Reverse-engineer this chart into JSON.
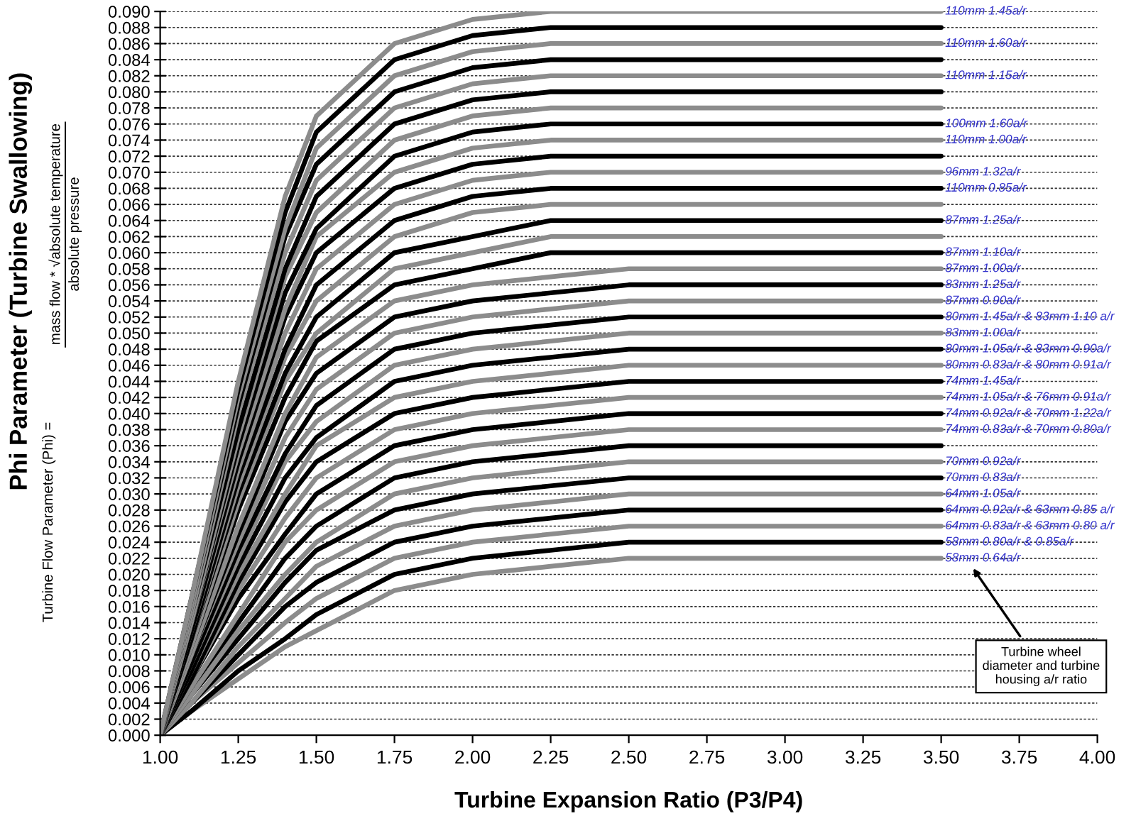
{
  "chart_data": {
    "type": "line",
    "xlabel": "Turbine Expansion Ratio (P3/P4)",
    "ylabel": "Phi Parameter (Turbine Swallowing)",
    "annotations": [
      "Turbine Flow Parameter (Phi) =",
      "mass flow * √absolute temperature",
      "absolute pressure",
      "Turbine wheel\ndiameter and turbine\nhousing a/r ratio"
    ],
    "x": [
      1.0,
      1.1,
      1.25,
      1.4,
      1.5,
      1.75,
      2.0,
      2.25,
      2.5,
      3.0,
      3.5
    ],
    "xlim": [
      1.0,
      4.0
    ],
    "ylim": [
      0.0,
      0.09
    ],
    "grid": "y",
    "xticks": [
      {
        "value": 1.0,
        "label": "1.00"
      },
      {
        "value": 1.25,
        "label": "1.25"
      },
      {
        "value": 1.5,
        "label": "1.50"
      },
      {
        "value": 1.75,
        "label": "1.75"
      },
      {
        "value": 2.0,
        "label": "2.00"
      },
      {
        "value": 2.25,
        "label": "2.25"
      },
      {
        "value": 2.5,
        "label": "2.50"
      },
      {
        "value": 2.75,
        "label": "2.75"
      },
      {
        "value": 3.0,
        "label": "3.00"
      },
      {
        "value": 3.25,
        "label": "3.25"
      },
      {
        "value": 3.5,
        "label": "3.50"
      },
      {
        "value": 3.75,
        "label": "3.75"
      },
      {
        "value": 4.0,
        "label": "4.00"
      }
    ],
    "yticks": [
      {
        "value": 0.0,
        "label": "0.000"
      },
      {
        "value": 0.002,
        "label": "0.002"
      },
      {
        "value": 0.004,
        "label": "0.004"
      },
      {
        "value": 0.006,
        "label": "0.006"
      },
      {
        "value": 0.008,
        "label": "0.008"
      },
      {
        "value": 0.01,
        "label": "0.010"
      },
      {
        "value": 0.012,
        "label": "0.012"
      },
      {
        "value": 0.014,
        "label": "0.014"
      },
      {
        "value": 0.016,
        "label": "0.016"
      },
      {
        "value": 0.018,
        "label": "0.018"
      },
      {
        "value": 0.02,
        "label": "0.020"
      },
      {
        "value": 0.022,
        "label": "0.022"
      },
      {
        "value": 0.024,
        "label": "0.024"
      },
      {
        "value": 0.026,
        "label": "0.026"
      },
      {
        "value": 0.028,
        "label": "0.028"
      },
      {
        "value": 0.03,
        "label": "0.030"
      },
      {
        "value": 0.032,
        "label": "0.032"
      },
      {
        "value": 0.034,
        "label": "0.034"
      },
      {
        "value": 0.036,
        "label": "0.036"
      },
      {
        "value": 0.038,
        "label": "0.038"
      },
      {
        "value": 0.04,
        "label": "0.040"
      },
      {
        "value": 0.042,
        "label": "0.042"
      },
      {
        "value": 0.044,
        "label": "0.044"
      },
      {
        "value": 0.046,
        "label": "0.046"
      },
      {
        "value": 0.048,
        "label": "0.048"
      },
      {
        "value": 0.05,
        "label": "0.050"
      },
      {
        "value": 0.052,
        "label": "0.052"
      },
      {
        "value": 0.054,
        "label": "0.054"
      },
      {
        "value": 0.056,
        "label": "0.056"
      },
      {
        "value": 0.058,
        "label": "0.058"
      },
      {
        "value": 0.06,
        "label": "0.060"
      },
      {
        "value": 0.062,
        "label": "0.062"
      },
      {
        "value": 0.064,
        "label": "0.064"
      },
      {
        "value": 0.066,
        "label": "0.066"
      },
      {
        "value": 0.068,
        "label": "0.068"
      },
      {
        "value": 0.07,
        "label": "0.070"
      },
      {
        "value": 0.072,
        "label": "0.072"
      },
      {
        "value": 0.074,
        "label": "0.074"
      },
      {
        "value": 0.076,
        "label": "0.076"
      },
      {
        "value": 0.078,
        "label": "0.078"
      },
      {
        "value": 0.08,
        "label": "0.080"
      },
      {
        "value": 0.082,
        "label": "0.082"
      },
      {
        "value": 0.084,
        "label": "0.084"
      },
      {
        "value": 0.086,
        "label": "0.086"
      },
      {
        "value": 0.088,
        "label": "0.088"
      },
      {
        "value": 0.09,
        "label": "0.090"
      }
    ],
    "series": [
      {
        "name": "58mm 0.64a/r",
        "color": "#8c8c8c",
        "values": [
          0.0,
          0.003,
          0.007,
          0.011,
          0.013,
          0.018,
          0.02,
          0.021,
          0.022,
          0.022,
          0.022
        ]
      },
      {
        "name": "58mm 0.80a/r & 0.85a/r",
        "color": "#000000",
        "values": [
          0.0,
          0.003,
          0.008,
          0.012,
          0.015,
          0.02,
          0.022,
          0.023,
          0.024,
          0.024,
          0.024
        ]
      },
      {
        "name": "64mm 0.83a/r & 63mm 0.80 a/r",
        "color": "#8c8c8c",
        "values": [
          0.0,
          0.004,
          0.009,
          0.014,
          0.017,
          0.022,
          0.024,
          0.025,
          0.026,
          0.026,
          0.026
        ]
      },
      {
        "name": "64mm 0.92a/r & 63mm 0.85 a/r",
        "color": "#000000",
        "values": [
          0.0,
          0.004,
          0.01,
          0.016,
          0.019,
          0.024,
          0.026,
          0.027,
          0.028,
          0.028,
          0.028
        ]
      },
      {
        "name": "64mm 1.05a/r",
        "color": "#8c8c8c",
        "values": [
          0.0,
          0.004,
          0.011,
          0.017,
          0.021,
          0.026,
          0.028,
          0.029,
          0.03,
          0.03,
          0.03
        ]
      },
      {
        "name": "70mm 0.83a/r",
        "color": "#000000",
        "values": [
          0.0,
          0.005,
          0.012,
          0.019,
          0.023,
          0.028,
          0.03,
          0.031,
          0.032,
          0.032,
          0.032
        ]
      },
      {
        "name": "70mm 0.92a/r",
        "color": "#8c8c8c",
        "values": [
          0.0,
          0.005,
          0.013,
          0.02,
          0.024,
          0.03,
          0.032,
          0.033,
          0.034,
          0.034,
          0.034
        ]
      },
      {
        "color": "#000000",
        "values": [
          0.0,
          0.006,
          0.014,
          0.022,
          0.026,
          0.032,
          0.034,
          0.035,
          0.036,
          0.036,
          0.036
        ]
      },
      {
        "name": "74mm 0.83a/r & 70mm 0.80a/r",
        "color": "#8c8c8c",
        "values": [
          0.0,
          0.006,
          0.015,
          0.024,
          0.028,
          0.034,
          0.036,
          0.037,
          0.038,
          0.038,
          0.038
        ]
      },
      {
        "name": "74mm 0.92a/r & 70mm 1.22a/r",
        "color": "#000000",
        "values": [
          0.0,
          0.007,
          0.017,
          0.025,
          0.03,
          0.036,
          0.038,
          0.039,
          0.04,
          0.04,
          0.04
        ]
      },
      {
        "name": "74mm 1.05a/r & 76mm 0.91a/r",
        "color": "#8c8c8c",
        "values": [
          0.0,
          0.007,
          0.018,
          0.027,
          0.032,
          0.038,
          0.04,
          0.041,
          0.042,
          0.042,
          0.042
        ]
      },
      {
        "name": "74mm 1.45a/r",
        "color": "#000000",
        "values": [
          0.0,
          0.007,
          0.019,
          0.029,
          0.034,
          0.04,
          0.042,
          0.043,
          0.044,
          0.044,
          0.044
        ]
      },
      {
        "name": "80mm 0.83a/r & 80mm 0.91a/r",
        "color": "#8c8c8c",
        "values": [
          0.0,
          0.008,
          0.02,
          0.03,
          0.036,
          0.042,
          0.044,
          0.045,
          0.046,
          0.046,
          0.046
        ]
      },
      {
        "name": "80mm 1.05a/r & 83mm 0.90a/r",
        "color": "#000000",
        "values": [
          0.0,
          0.008,
          0.021,
          0.032,
          0.037,
          0.044,
          0.046,
          0.047,
          0.048,
          0.048,
          0.048
        ]
      },
      {
        "name": "83mm 1.00a/r",
        "color": "#8c8c8c",
        "values": [
          0.0,
          0.009,
          0.022,
          0.034,
          0.039,
          0.046,
          0.048,
          0.049,
          0.05,
          0.05,
          0.05
        ]
      },
      {
        "name": "80mm 1.45a/r & 83mm 1.10 a/r",
        "color": "#000000",
        "values": [
          0.0,
          0.009,
          0.023,
          0.035,
          0.041,
          0.048,
          0.05,
          0.051,
          0.052,
          0.052,
          0.052
        ]
      },
      {
        "name": "87mm 0.90a/r",
        "color": "#8c8c8c",
        "values": [
          0.0,
          0.01,
          0.024,
          0.037,
          0.043,
          0.05,
          0.052,
          0.053,
          0.054,
          0.054,
          0.054
        ]
      },
      {
        "name": "83mm 1.25a/r",
        "color": "#000000",
        "values": [
          0.0,
          0.01,
          0.025,
          0.039,
          0.045,
          0.052,
          0.054,
          0.055,
          0.056,
          0.056,
          0.056
        ]
      },
      {
        "name": "87mm 1.00a/r",
        "color": "#8c8c8c",
        "values": [
          0.0,
          0.01,
          0.026,
          0.04,
          0.047,
          0.054,
          0.056,
          0.057,
          0.058,
          0.058,
          0.058
        ]
      },
      {
        "name": "87mm 1.10a/r",
        "color": "#000000",
        "values": [
          0.0,
          0.011,
          0.028,
          0.042,
          0.049,
          0.056,
          0.058,
          0.06,
          0.06,
          0.06,
          0.06
        ]
      },
      {
        "color": "#8c8c8c",
        "values": [
          0.0,
          0.011,
          0.029,
          0.044,
          0.05,
          0.058,
          0.06,
          0.062,
          0.062,
          0.062,
          0.062
        ]
      },
      {
        "name": "87mm 1.25a/r",
        "color": "#000000",
        "values": [
          0.0,
          0.012,
          0.03,
          0.045,
          0.052,
          0.06,
          0.062,
          0.064,
          0.064,
          0.064,
          0.064
        ]
      },
      {
        "color": "#8c8c8c",
        "values": [
          0.0,
          0.012,
          0.031,
          0.047,
          0.054,
          0.062,
          0.065,
          0.066,
          0.066,
          0.066,
          0.066
        ]
      },
      {
        "name": "110mm 0.85a/r",
        "color": "#000000",
        "values": [
          0.0,
          0.012,
          0.032,
          0.048,
          0.056,
          0.064,
          0.067,
          0.068,
          0.068,
          0.068,
          0.068
        ]
      },
      {
        "name": "96mm 1.32a/r",
        "color": "#8c8c8c",
        "values": [
          0.0,
          0.013,
          0.033,
          0.05,
          0.058,
          0.066,
          0.069,
          0.07,
          0.07,
          0.07,
          0.07
        ]
      },
      {
        "color": "#000000",
        "values": [
          0.0,
          0.013,
          0.034,
          0.052,
          0.06,
          0.068,
          0.071,
          0.072,
          0.072,
          0.072,
          0.072
        ]
      },
      {
        "name": "110mm 1.00a/r",
        "color": "#8c8c8c",
        "values": [
          0.0,
          0.014,
          0.035,
          0.053,
          0.062,
          0.07,
          0.073,
          0.074,
          0.074,
          0.074,
          0.074
        ]
      },
      {
        "name": "100mm 1.60a/r",
        "color": "#000000",
        "values": [
          0.0,
          0.014,
          0.036,
          0.055,
          0.063,
          0.072,
          0.075,
          0.076,
          0.076,
          0.076,
          0.076
        ]
      },
      {
        "color": "#8c8c8c",
        "values": [
          0.0,
          0.014,
          0.037,
          0.057,
          0.065,
          0.074,
          0.077,
          0.078,
          0.078,
          0.078,
          0.078
        ]
      },
      {
        "color": "#000000",
        "values": [
          0.0,
          0.015,
          0.038,
          0.058,
          0.067,
          0.076,
          0.079,
          0.08,
          0.08,
          0.08,
          0.08
        ]
      },
      {
        "name": "110mm 1.15a/r",
        "color": "#8c8c8c",
        "values": [
          0.0,
          0.015,
          0.04,
          0.06,
          0.069,
          0.078,
          0.081,
          0.082,
          0.082,
          0.082,
          0.082
        ]
      },
      {
        "color": "#000000",
        "values": [
          0.0,
          0.016,
          0.041,
          0.062,
          0.071,
          0.08,
          0.083,
          0.084,
          0.084,
          0.084,
          0.084
        ]
      },
      {
        "name": "110mm 1.60a/r",
        "color": "#8c8c8c",
        "values": [
          0.0,
          0.016,
          0.042,
          0.063,
          0.073,
          0.082,
          0.085,
          0.086,
          0.086,
          0.086,
          0.086
        ]
      },
      {
        "color": "#000000",
        "values": [
          0.0,
          0.017,
          0.043,
          0.065,
          0.075,
          0.084,
          0.087,
          0.088,
          0.088,
          0.088,
          0.088
        ]
      },
      {
        "name": "110mm 1.45a/r",
        "color": "#8c8c8c",
        "values": [
          0.0,
          0.017,
          0.044,
          0.067,
          0.077,
          0.086,
          0.089,
          0.09,
          0.09,
          0.09,
          0.09
        ]
      }
    ]
  }
}
